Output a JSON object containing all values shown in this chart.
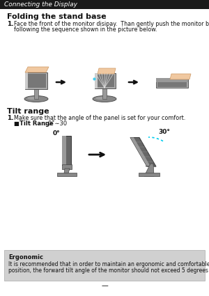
{
  "title_bar_text": "Connecting the Display",
  "title_bar_bg": "#1a1a1a",
  "title_bar_text_color": "#ffffff",
  "section1_title": "Folding the stand base",
  "section1_step": "1.",
  "section1_line1": "Face the front of the monitor disipay.  Than gently push the monitor backwards,",
  "section1_line2": "following the sequence shown in the picture below.",
  "section2_title": "Tilt range",
  "section2_step": "1.",
  "section2_text": "Make sure that the angle of the panel is set for your comfort.",
  "section2_bullet_bold": "Tilt Range",
  "section2_bullet_rest": " : 0˚∼30",
  "tilt_label_left": "0°",
  "tilt_label_right": "30°",
  "ergonomic_title": "Ergonomic",
  "ergonomic_text_line1": "It is recommended that in order to maintain an ergonomic and comfortable viewing",
  "ergonomic_text_line2": "position, the forward tilt angle of the monitor should not exceed 5 degrees",
  "page_number": "—",
  "bg_color": "#ffffff",
  "ergonomic_box_color": "#d0d0d0",
  "arrow_color": "#111111",
  "monitor_dark": "#555555",
  "monitor_mid": "#888888",
  "monitor_light": "#aaaaaa",
  "monitor_lighter": "#cccccc",
  "base_dark": "#666666",
  "base_mid": "#999999",
  "skin_color": "#f0c8a0",
  "skin_edge": "#cc9966"
}
